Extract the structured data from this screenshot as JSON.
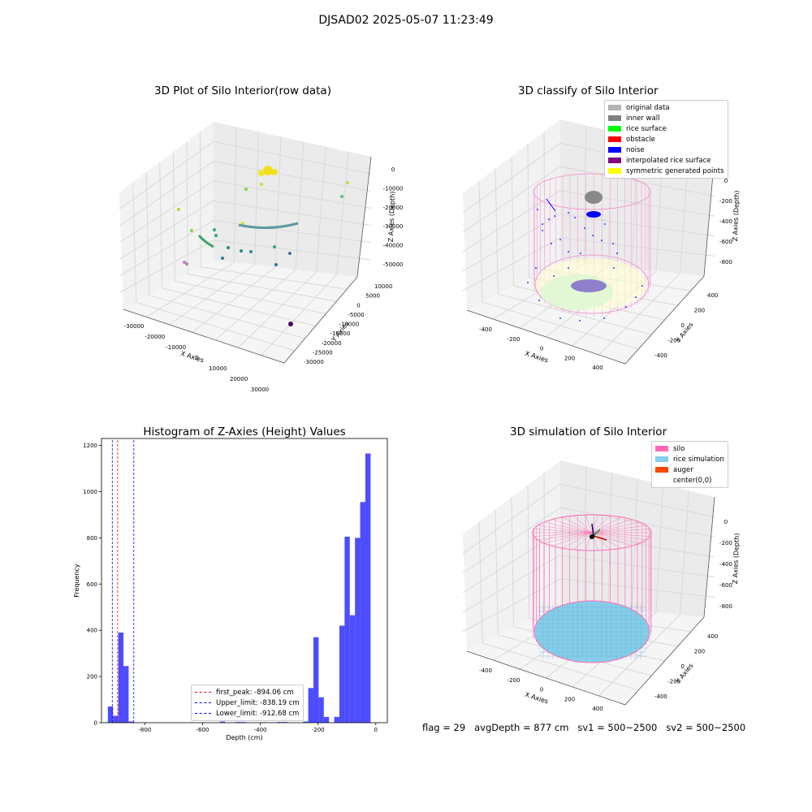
{
  "figure_title": "DJSAD02 2025-05-07 11:23:49",
  "panels": {
    "raw": {
      "title": "3D Plot of Silo Interior(row data)",
      "xlabel": "X Axies",
      "ylabel": "Y Axies",
      "zlabel": "Z Axies (Depth)",
      "xticks": [
        "-30000",
        "-20000",
        "-10000",
        "0",
        "10000",
        "20000",
        "30000"
      ],
      "yticks": [
        "10000",
        "5000",
        "0",
        "-5000",
        "-10000",
        "-15000",
        "-20000",
        "-25000",
        "-30000"
      ],
      "zticks": [
        "0",
        "-10000",
        "-20000",
        "-30000",
        "-40000",
        "-50000"
      ]
    },
    "classify": {
      "title": "3D classify of Silo Interior",
      "xlabel": "X Axies",
      "ylabel": "Y Axies",
      "zlabel": "Z Axies (Depth)",
      "xticks": [
        "-400",
        "-200",
        "0",
        "200",
        "400"
      ],
      "yticks": [
        "400",
        "200",
        "0",
        "-200",
        "-400"
      ],
      "zticks": [
        "0",
        "-200",
        "-400",
        "-600",
        "-800"
      ],
      "legend": [
        {
          "label": "original data",
          "color": "#b3b3b3"
        },
        {
          "label": "inner wall",
          "color": "#808080"
        },
        {
          "label": "rice surface",
          "color": "#00ff00"
        },
        {
          "label": "obstacle",
          "color": "#ff0000"
        },
        {
          "label": "noise",
          "color": "#0000ff"
        },
        {
          "label": "interpolated rice surface",
          "color": "#800080"
        },
        {
          "label": "symmetric generated points",
          "color": "#ffff00"
        }
      ]
    },
    "simulation": {
      "title": "3D simulation of Silo Interior",
      "xlabel": "X Axies",
      "ylabel": "Y Axies",
      "zlabel": "Z Axies (Depth)",
      "xticks": [
        "-400",
        "-200",
        "0",
        "200",
        "400"
      ],
      "yticks": [
        "400",
        "200",
        "0",
        "-200",
        "-400"
      ],
      "zticks": [
        "0",
        "-200",
        "-400",
        "-600",
        "-800"
      ],
      "legend": [
        {
          "label": "silo",
          "color": "#ff69b4"
        },
        {
          "label": "rice simulation",
          "color": "#87ceeb"
        },
        {
          "label": "auger",
          "color": "#ff4500"
        },
        {
          "label": "center(0,0)",
          "color": "#ffffff"
        }
      ]
    }
  },
  "footer": {
    "flag": "flag = 29",
    "avg": "avgDepth = 877 cm",
    "sv1": "sv1 = 500~2500",
    "sv2": "sv2 = 500~2500"
  },
  "chart_data": [
    {
      "type": "scatter",
      "title": "3D Plot of Silo Interior(row data)",
      "xlabel": "X Axies",
      "ylabel": "Y Axies",
      "zlabel": "Z Axies (Depth)",
      "xlim": [
        -35000,
        35000
      ],
      "ylim": [
        -32000,
        10000
      ],
      "zlim": [
        -55000,
        0
      ]
    },
    {
      "type": "scatter",
      "title": "3D classify of Silo Interior",
      "xlabel": "X Axies",
      "ylabel": "Y Axies",
      "zlabel": "Z Axies (Depth)",
      "xlim": [
        -500,
        500
      ],
      "ylim": [
        -500,
        500
      ],
      "zlim": [
        -900,
        0
      ],
      "series": [
        {
          "name": "original data"
        },
        {
          "name": "inner wall"
        },
        {
          "name": "rice surface"
        },
        {
          "name": "obstacle"
        },
        {
          "name": "noise"
        },
        {
          "name": "interpolated rice surface"
        },
        {
          "name": "symmetric generated points"
        }
      ]
    },
    {
      "type": "bar",
      "title": "Histogram of Z-Axies (Height) Values",
      "xlabel": "Depth (cm)",
      "ylabel": "Frequency",
      "xlim": [
        -950,
        40
      ],
      "ylim": [
        0,
        1230
      ],
      "xticks": [
        -800,
        -600,
        -400,
        -200,
        0
      ],
      "yticks": [
        0,
        200,
        400,
        600,
        800,
        1000,
        1200
      ],
      "bar_color": "#4d4dff",
      "bins": [
        {
          "x0": -928,
          "x1": -910,
          "value": 70
        },
        {
          "x0": -910,
          "x1": -892,
          "value": 30
        },
        {
          "x0": -892,
          "x1": -874,
          "value": 390
        },
        {
          "x0": -874,
          "x1": -856,
          "value": 245
        },
        {
          "x0": -856,
          "x1": -838,
          "value": 5
        },
        {
          "x0": -540,
          "x1": -522,
          "value": 5
        },
        {
          "x0": -486,
          "x1": -468,
          "value": 3
        },
        {
          "x0": -468,
          "x1": -450,
          "value": 3
        },
        {
          "x0": -396,
          "x1": -378,
          "value": 2
        },
        {
          "x0": -342,
          "x1": -324,
          "value": 3
        },
        {
          "x0": -324,
          "x1": -306,
          "value": 3
        },
        {
          "x0": -252,
          "x1": -234,
          "value": 5
        },
        {
          "x0": -234,
          "x1": -216,
          "value": 150
        },
        {
          "x0": -216,
          "x1": -198,
          "value": 370
        },
        {
          "x0": -198,
          "x1": -180,
          "value": 110
        },
        {
          "x0": -180,
          "x1": -162,
          "value": 25
        },
        {
          "x0": -144,
          "x1": -126,
          "value": 25
        },
        {
          "x0": -126,
          "x1": -108,
          "value": 420
        },
        {
          "x0": -108,
          "x1": -90,
          "value": 805
        },
        {
          "x0": -90,
          "x1": -72,
          "value": 465
        },
        {
          "x0": -72,
          "x1": -54,
          "value": 800
        },
        {
          "x0": -54,
          "x1": -36,
          "value": 955
        },
        {
          "x0": -36,
          "x1": -18,
          "value": 1165
        }
      ],
      "vlines": [
        {
          "name": "first_peak: -894.06 cm",
          "x": -894.06,
          "color": "#ff0000"
        },
        {
          "name": "Upper_limit: -838.19 cm",
          "x": -838.19,
          "color": "#0000ff"
        },
        {
          "name": "Lower_limit: -912.68 cm",
          "x": -912.68,
          "color": "#0000ff"
        }
      ]
    },
    {
      "type": "scatter",
      "title": "3D simulation of Silo Interior",
      "xlabel": "X Axies",
      "ylabel": "Y Axies",
      "zlabel": "Z Axies (Depth)",
      "xlim": [
        -500,
        500
      ],
      "ylim": [
        -500,
        500
      ],
      "zlim": [
        -900,
        100
      ],
      "series": [
        {
          "name": "silo"
        },
        {
          "name": "rice simulation"
        },
        {
          "name": "auger"
        },
        {
          "name": "center(0,0)"
        }
      ]
    }
  ]
}
